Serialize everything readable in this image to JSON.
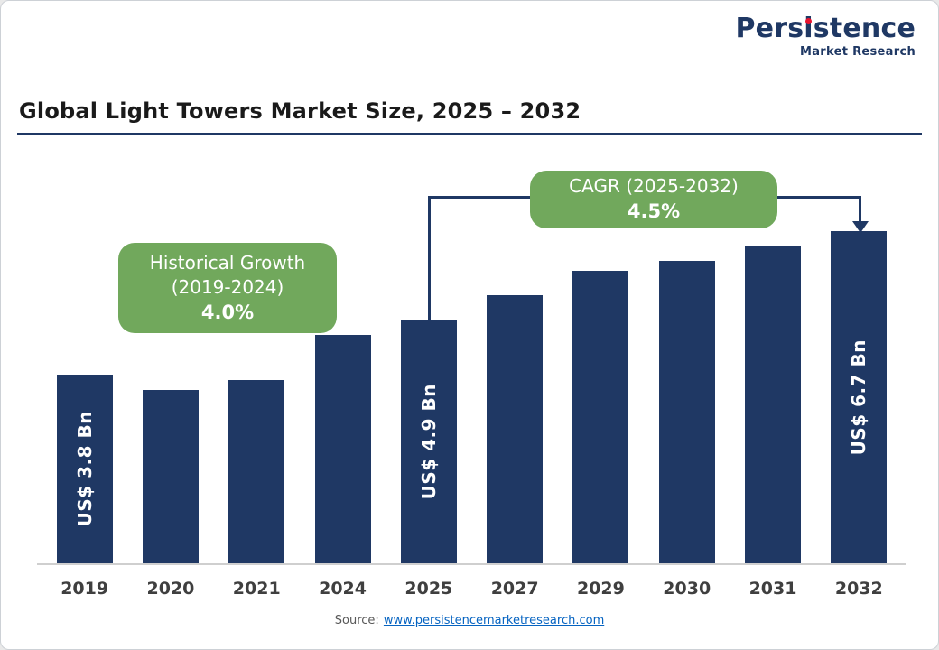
{
  "logo": {
    "name": "Persistence",
    "name_parts": [
      "Pers",
      "i",
      "stence"
    ],
    "subtitle": "Market Research",
    "color": "#1f3864",
    "dot_color": "#e8132e"
  },
  "header": {
    "title": "Global Light Towers Market Size, 2025 – 2032",
    "underline_color": "#1f3864"
  },
  "chart_data": {
    "type": "bar",
    "title": "Global Light Towers Market Size, 2025 – 2032",
    "value_unit": "US$ Bn",
    "categories": [
      "2019",
      "2020",
      "2021",
      "2024",
      "2025",
      "2027",
      "2029",
      "2030",
      "2031",
      "2032"
    ],
    "values": [
      3.8,
      3.5,
      3.7,
      4.6,
      4.9,
      5.4,
      5.9,
      6.1,
      6.4,
      6.7
    ],
    "bar_labels": [
      "US$ 3.8 Bn",
      null,
      null,
      null,
      "US$ 4.9 Bn",
      null,
      null,
      null,
      null,
      "US$ 6.7 Bn"
    ],
    "ylim": [
      0,
      7
    ],
    "grid": false,
    "bar_color": "#1f3864",
    "annotation_color": "#71a85c",
    "annotations": [
      {
        "lines": [
          "Historical Growth",
          "(2019-2024)"
        ],
        "value": "4.0%",
        "applies_to": "2019-2024"
      },
      {
        "lines": [
          "CAGR (2025-2032)"
        ],
        "value": "4.5%",
        "applies_to": "2025-2032"
      }
    ]
  },
  "callouts": {
    "historical": {
      "line1": "Historical Growth",
      "line2": "(2019-2024)",
      "value": "4.0%"
    },
    "cagr": {
      "line1": "CAGR (2025-2032)",
      "value": "4.5%"
    }
  },
  "source": {
    "prefix": "Source:",
    "link": "www.persistencemarketresearch.com"
  }
}
